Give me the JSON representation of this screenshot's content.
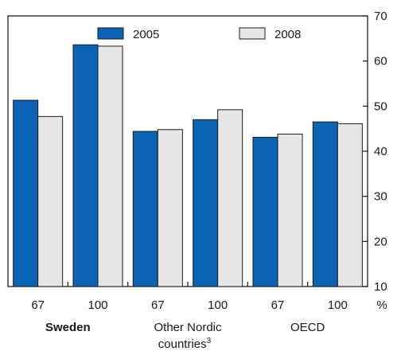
{
  "chart_data": {
    "type": "bar",
    "series": [
      {
        "name": "2005",
        "color": "#0a63b4",
        "values": [
          51.3,
          63.6,
          44.4,
          47.0,
          43.1,
          46.5
        ]
      },
      {
        "name": "2008",
        "color": "#e6e6e6",
        "values": [
          47.7,
          63.3,
          44.8,
          49.2,
          43.8,
          46.1
        ]
      }
    ],
    "categories": [
      "67",
      "100",
      "67",
      "100",
      "67",
      "100"
    ],
    "groups": [
      {
        "label": "Sweden",
        "bold": true
      },
      {
        "label": "Other Nordic",
        "label2": "countries",
        "sup": "3",
        "bold": false
      },
      {
        "label": "OECD",
        "bold": false
      }
    ],
    "x_unit": "%",
    "ylim": [
      10,
      70
    ],
    "yticks": [
      10,
      20,
      30,
      40,
      50,
      60,
      70
    ],
    "grid": false,
    "legend_position": "top"
  }
}
